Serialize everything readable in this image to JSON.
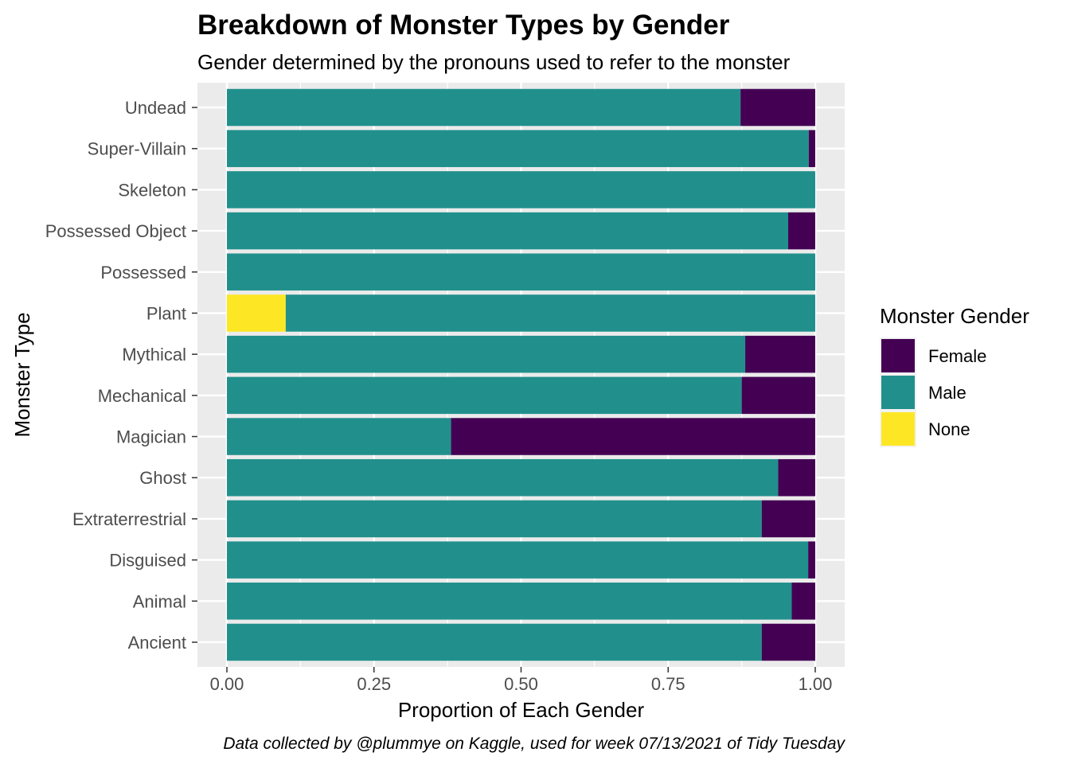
{
  "chart_data": {
    "type": "bar",
    "orientation": "horizontal",
    "stacked": true,
    "title": "Breakdown of Monster Types by Gender",
    "subtitle": "Gender determined by the pronouns used to refer to the monster",
    "xlabel": "Proportion of Each Gender",
    "ylabel": "Monster Type",
    "caption": "Data collected by @plummye on Kaggle, used for week 07/13/2021 of Tidy Tuesday",
    "xlim": [
      0,
      1
    ],
    "x_ticks": [
      "0.00",
      "0.25",
      "0.50",
      "0.75",
      "1.00"
    ],
    "x_tick_values": [
      0,
      0.25,
      0.5,
      0.75,
      1
    ],
    "grid": true,
    "legend_title": "Monster Gender",
    "legend_position": "right",
    "categories": [
      "Undead",
      "Super-Villain",
      "Skeleton",
      "Possessed Object",
      "Possessed",
      "Plant",
      "Mythical",
      "Mechanical",
      "Magician",
      "Ghost",
      "Extraterrestrial",
      "Disguised",
      "Animal",
      "Ancient"
    ],
    "series": [
      {
        "name": "None",
        "color": "#FDE725",
        "values": [
          0,
          0,
          0,
          0,
          0,
          0.1,
          0,
          0,
          0,
          0,
          0,
          0,
          0,
          0
        ]
      },
      {
        "name": "Male",
        "color": "#21908C",
        "values": [
          0.873,
          0.989,
          1.0,
          0.954,
          1.0,
          0.9,
          0.881,
          0.875,
          0.381,
          0.937,
          0.909,
          0.988,
          0.96,
          0.909
        ]
      },
      {
        "name": "Female",
        "color": "#440154",
        "values": [
          0.127,
          0.011,
          0,
          0.046,
          0,
          0,
          0.119,
          0.125,
          0.619,
          0.063,
          0.091,
          0.012,
          0.04,
          0.091
        ]
      }
    ],
    "legend_order": [
      "Female",
      "Male",
      "None"
    ]
  }
}
